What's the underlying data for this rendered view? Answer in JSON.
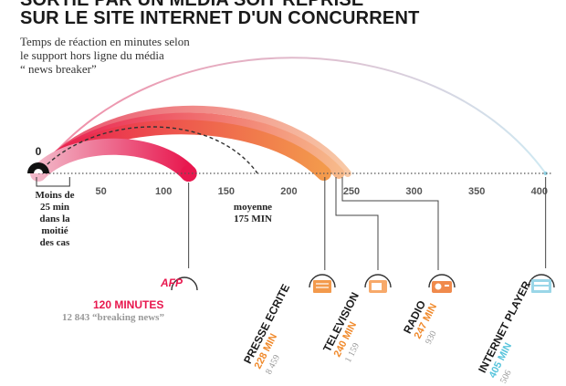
{
  "title": {
    "line1": "SORTIE PAR UN MÉDIA SOIT REPRISE",
    "line2": "SUR LE SITE INTERNET D'UN CONCURRENT"
  },
  "subtitle": {
    "line1": "Temps de réaction en minutes selon",
    "line2": "le support hors ligne du média",
    "line3": "“ news breaker”"
  },
  "notes": {
    "median": [
      "Moins de",
      "25 min",
      "dans la moitié",
      "des cas"
    ],
    "average": [
      "moyenne",
      "175 MIN"
    ]
  },
  "afp": {
    "logo": "AFP",
    "minutes": "120 MINUTES",
    "count": "12 843 “breaking news”"
  },
  "colors": {
    "afp": "#e8174e",
    "print": "#f39a4c",
    "tv": "#f7b98a",
    "radio": "#f8c9a6",
    "internet": "#cfe9f2",
    "minutes_orange": "#f08a2c",
    "minutes_blue": "#58c4dc",
    "axis": "#555555"
  },
  "chart_data": {
    "type": "arc",
    "axis": {
      "min": 0,
      "max": 400,
      "ticks": [
        0,
        50,
        100,
        150,
        200,
        250,
        300,
        350,
        400
      ],
      "tick_labels": [
        "0",
        "50",
        "100",
        "150",
        "200",
        "250",
        "300",
        "350",
        "400"
      ]
    },
    "median_minutes": 25,
    "average_minutes": 175,
    "series": [
      {
        "name": "AFP",
        "minutes_label": "120 MINUTES",
        "minutes": 120,
        "count_label": "12 843 “breaking news”",
        "icon": "afp-logo-icon"
      },
      {
        "name": "PRESSE ECRITE",
        "minutes_label": "228 MIN",
        "minutes": 228,
        "count_label": "8 459",
        "icon": "newspaper-icon"
      },
      {
        "name": "TELEVISION",
        "minutes_label": "240 MIN",
        "minutes": 240,
        "count_label": "1 159",
        "icon": "television-icon"
      },
      {
        "name": "RADIO",
        "minutes_label": "247 MIN",
        "minutes": 247,
        "count_label": "930",
        "icon": "radio-icon"
      },
      {
        "name": "INTERNET PLAYER",
        "minutes_label": "405 MIN",
        "minutes": 405,
        "count_label": "506",
        "icon": "internet-player-icon"
      }
    ]
  }
}
